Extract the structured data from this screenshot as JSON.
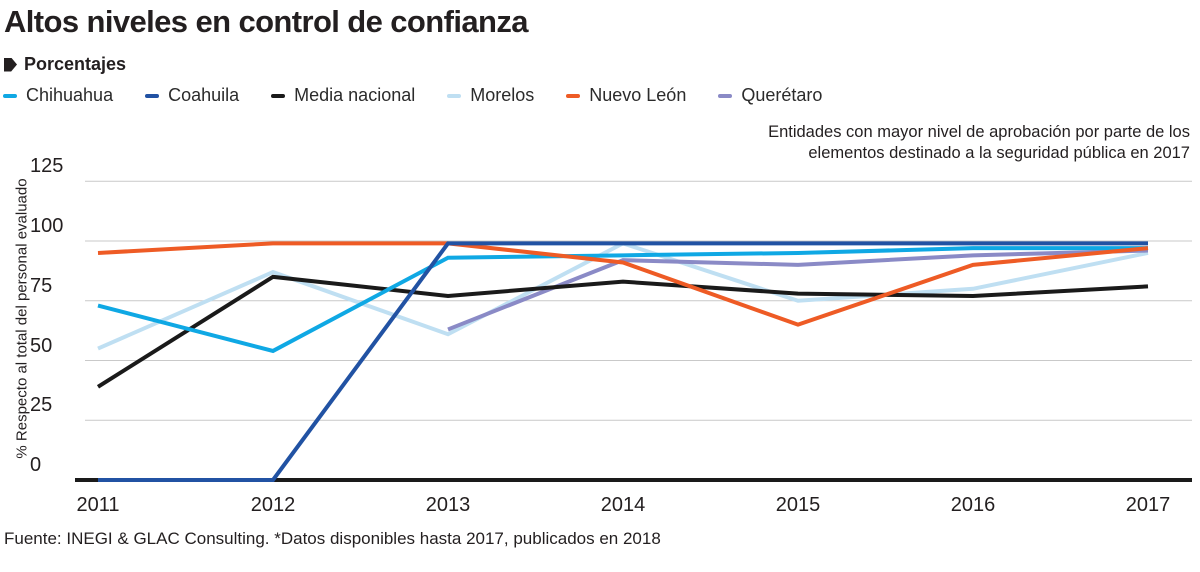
{
  "header": {
    "title": "Altos niveles en control de confianza",
    "subtitle": "Porcentajes",
    "annotation": "Entidades con mayor nivel de aprobación por parte de los elementos destinado a la seguridad pública en 2017"
  },
  "footer": {
    "source": "Fuente: INEGI & GLAC Consulting. *Datos disponibles hasta 2017, publicados en 2018"
  },
  "chart_data": {
    "type": "line",
    "title": "Altos niveles en control de confianza",
    "subtitle": "Porcentajes",
    "xlabel": "",
    "ylabel": "% Respecto al total del personal evaluado",
    "x": [
      "2011",
      "2012",
      "2013",
      "2014",
      "2015",
      "2016",
      "2017"
    ],
    "yticks": [
      0,
      25,
      50,
      75,
      100,
      125
    ],
    "ylim": [
      0,
      125
    ],
    "grid": true,
    "legend_position": "top",
    "series": [
      {
        "name": "Chihuahua",
        "color": "#0FA8E4",
        "values": [
          73,
          54,
          93,
          94,
          95,
          97,
          97
        ]
      },
      {
        "name": "Coahuila",
        "color": "#2152A3",
        "values": [
          0,
          0,
          99,
          99,
          99,
          99,
          99
        ]
      },
      {
        "name": "Media nacional",
        "color": "#1A1A1A",
        "values": [
          39,
          85,
          77,
          83,
          78,
          77,
          81
        ]
      },
      {
        "name": "Morelos",
        "color": "#BFDFF2",
        "values": [
          55,
          87,
          61,
          99,
          75,
          80,
          95
        ]
      },
      {
        "name": "Nuevo León",
        "color": "#EE5B25",
        "values": [
          95,
          99,
          99,
          91,
          65,
          90,
          97
        ]
      },
      {
        "name": "Querétaro",
        "color": "#8A8AC6",
        "values": [
          null,
          null,
          63,
          92,
          90,
          94,
          96
        ]
      }
    ],
    "colors": {
      "grid": "#C9C9C9",
      "axis": "#1A1A1A",
      "text": "#231F20"
    }
  }
}
